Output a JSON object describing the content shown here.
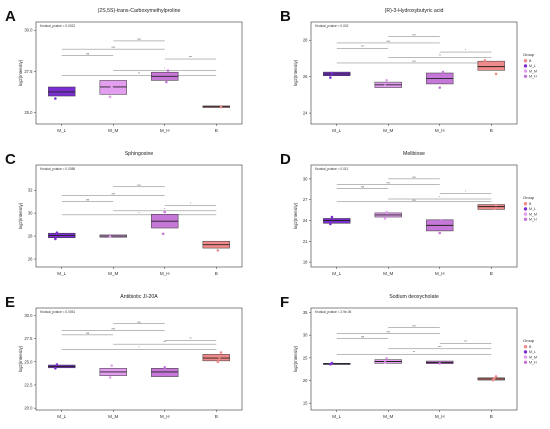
{
  "chart_data": [
    {
      "type": "box",
      "letter": "A",
      "title": "(2S,5S)-trans-Carboxymethylproline",
      "ylabel": "log2(Intensity)",
      "annotation": "Kruskal_pvalue = 0.0022",
      "categories": [
        "M_L",
        "M_M",
        "M_H",
        "B"
      ],
      "ylim": [
        24.3,
        30.5
      ],
      "yticks": [
        25.0,
        27.5,
        30.0
      ],
      "ytick_labels": [
        "25.0",
        "27.5",
        "30.0"
      ],
      "legend": null,
      "boxes": [
        {
          "q1": 26.0,
          "median": 26.25,
          "q3": 26.55,
          "color": "#7b2fd0"
        },
        {
          "q1": 26.1,
          "median": 26.55,
          "q3": 26.95,
          "color": "#e39ef0"
        },
        {
          "q1": 26.95,
          "median": 27.2,
          "q3": 27.45,
          "color": "#c678d8"
        },
        {
          "q1": 25.3,
          "median": 25.35,
          "q3": 25.4,
          "color": "#f08a8a"
        }
      ],
      "points": [
        [
          0,
          25.85
        ],
        [
          0,
          26.45
        ],
        [
          1,
          25.95
        ],
        [
          1,
          26.55
        ],
        [
          1,
          26.7
        ],
        [
          2,
          26.85
        ],
        [
          2,
          27.55
        ],
        [
          3,
          25.33
        ]
      ],
      "brackets": [
        {
          "from": 0,
          "to": 1,
          "y": 28.45,
          "label": "ns"
        },
        {
          "from": 0,
          "to": 2,
          "y": 28.85,
          "label": "ns"
        },
        {
          "from": 1,
          "to": 2,
          "y": 29.35,
          "label": "ns"
        },
        {
          "from": 2,
          "to": 3,
          "y": 28.25,
          "label": "***"
        },
        {
          "from": 1,
          "to": 3,
          "y": 27.55,
          "label": "*"
        },
        {
          "from": 0,
          "to": 3,
          "y": 27.25,
          "label": "**"
        }
      ]
    },
    {
      "type": "box",
      "letter": "B",
      "title": "(R)-3-Hydroxybutyric acid",
      "ylabel": "log2(Intensity)",
      "annotation": "Kruskal_pvalue = 0.002",
      "categories": [
        "M_L",
        "M_M",
        "M_H",
        "B"
      ],
      "ylim": [
        23.4,
        29.0
      ],
      "yticks": [
        24,
        26,
        28
      ],
      "ytick_labels": [
        "24",
        "26",
        "28"
      ],
      "legend": {
        "title": "Group",
        "items": [
          "B",
          "M_L",
          "M_M",
          "M_H"
        ],
        "colors": [
          "#f08a8a",
          "#7b2fd0",
          "#e39ef0",
          "#c678d8"
        ]
      },
      "boxes": [
        {
          "q1": 26.05,
          "median": 26.15,
          "q3": 26.25,
          "color": "#7b2fd0"
        },
        {
          "q1": 25.4,
          "median": 25.55,
          "q3": 25.7,
          "color": "#e39ef0"
        },
        {
          "q1": 25.6,
          "median": 25.9,
          "q3": 26.2,
          "color": "#c678d8"
        },
        {
          "q1": 26.35,
          "median": 26.55,
          "q3": 26.85,
          "color": "#f08a8a"
        }
      ],
      "points": [
        [
          0,
          25.95
        ],
        [
          0,
          26.2
        ],
        [
          1,
          25.5
        ],
        [
          1,
          25.8
        ],
        [
          2,
          25.4
        ],
        [
          2,
          26.0
        ],
        [
          2,
          26.25
        ],
        [
          3,
          26.15
        ],
        [
          3,
          26.45
        ],
        [
          3,
          26.9
        ]
      ],
      "brackets": [
        {
          "from": 0,
          "to": 1,
          "y": 27.55,
          "label": "***"
        },
        {
          "from": 0,
          "to": 2,
          "y": 27.85,
          "label": "ns"
        },
        {
          "from": 1,
          "to": 2,
          "y": 28.2,
          "label": "ns"
        },
        {
          "from": 2,
          "to": 3,
          "y": 27.35,
          "label": "*"
        },
        {
          "from": 1,
          "to": 3,
          "y": 27.05,
          "label": "**"
        },
        {
          "from": 0,
          "to": 3,
          "y": 26.75,
          "label": "ns"
        }
      ]
    },
    {
      "type": "box",
      "letter": "C",
      "title": "Sphingosine",
      "ylabel": "log2(Intensity)",
      "annotation": "Kruskal_pvalue = 0.0086",
      "categories": [
        "M_L",
        "M_M",
        "M_H",
        "B"
      ],
      "ylim": [
        25.3,
        34.2
      ],
      "yticks": [
        26,
        28,
        30,
        32
      ],
      "ytick_labels": [
        "26",
        "28",
        "30",
        "32"
      ],
      "legend": null,
      "boxes": [
        {
          "q1": 27.85,
          "median": 28.05,
          "q3": 28.25,
          "color": "#7b2fd0"
        },
        {
          "q1": 27.9,
          "median": 28.0,
          "q3": 28.1,
          "color": "#e39ef0"
        },
        {
          "q1": 28.7,
          "median": 29.3,
          "q3": 29.9,
          "color": "#c678d8"
        },
        {
          "q1": 26.95,
          "median": 27.25,
          "q3": 27.55,
          "color": "#f08a8a"
        }
      ],
      "points": [
        [
          0,
          27.75
        ],
        [
          0,
          28.3
        ],
        [
          1,
          27.95
        ],
        [
          2,
          28.2
        ],
        [
          2,
          30.1
        ],
        [
          3,
          26.75
        ],
        [
          3,
          27.4
        ]
      ],
      "brackets": [
        {
          "from": 0,
          "to": 1,
          "y": 31.0,
          "label": "ns"
        },
        {
          "from": 0,
          "to": 2,
          "y": 31.55,
          "label": "ns"
        },
        {
          "from": 1,
          "to": 2,
          "y": 32.3,
          "label": "ns"
        },
        {
          "from": 2,
          "to": 3,
          "y": 30.65,
          "label": "*"
        },
        {
          "from": 1,
          "to": 3,
          "y": 30.2,
          "label": "*"
        },
        {
          "from": 0,
          "to": 3,
          "y": 29.85,
          "label": "*"
        }
      ]
    },
    {
      "type": "box",
      "letter": "D",
      "title": "Melibiose",
      "ylabel": "log2(Intensity)",
      "annotation": "Kruskal_pvalue = 0.011",
      "categories": [
        "M_L",
        "M_M",
        "M_H",
        "B"
      ],
      "ylim": [
        17.3,
        32.0
      ],
      "yticks": [
        18,
        21,
        24,
        27,
        30
      ],
      "ytick_labels": [
        "18",
        "21",
        "24",
        "27",
        "30"
      ],
      "legend": {
        "title": "Group",
        "items": [
          "B",
          "M_L",
          "M_M",
          "M_H"
        ],
        "colors": [
          "#f08a8a",
          "#7b2fd0",
          "#e39ef0",
          "#c678d8"
        ]
      },
      "boxes": [
        {
          "q1": 23.6,
          "median": 24.0,
          "q3": 24.3,
          "color": "#7b2fd0"
        },
        {
          "q1": 24.5,
          "median": 24.8,
          "q3": 25.1,
          "color": "#e39ef0"
        },
        {
          "q1": 22.5,
          "median": 23.3,
          "q3": 24.1,
          "color": "#c678d8"
        },
        {
          "q1": 25.6,
          "median": 26.0,
          "q3": 26.3,
          "color": "#f08a8a"
        }
      ],
      "points": [
        [
          0,
          23.5
        ],
        [
          0,
          24.5
        ],
        [
          1,
          24.3
        ],
        [
          1,
          25.2
        ],
        [
          2,
          22.2
        ],
        [
          2,
          24.0
        ],
        [
          3,
          25.7
        ],
        [
          3,
          26.2
        ]
      ],
      "brackets": [
        {
          "from": 0,
          "to": 1,
          "y": 28.6,
          "label": "ns"
        },
        {
          "from": 0,
          "to": 2,
          "y": 29.2,
          "label": "ns"
        },
        {
          "from": 1,
          "to": 2,
          "y": 30.0,
          "label": "ns"
        },
        {
          "from": 2,
          "to": 3,
          "y": 27.9,
          "label": "*"
        },
        {
          "from": 1,
          "to": 3,
          "y": 27.1,
          "label": "*"
        },
        {
          "from": 0,
          "to": 3,
          "y": 26.7,
          "label": "ns"
        }
      ]
    },
    {
      "type": "box",
      "letter": "E",
      "title": "Antibiotic JI-20A",
      "ylabel": "log2(Intensity)",
      "annotation": "Kruskal_pvalue = 0.0051",
      "categories": [
        "M_L",
        "M_M",
        "M_H",
        "B"
      ],
      "ylim": [
        19.8,
        30.8
      ],
      "yticks": [
        20.0,
        22.5,
        25.0,
        27.5,
        30.0
      ],
      "ytick_labels": [
        "20.0",
        "22.5",
        "25.0",
        "27.5",
        "30.0"
      ],
      "legend": null,
      "boxes": [
        {
          "q1": 24.35,
          "median": 24.5,
          "q3": 24.65,
          "color": "#7b2fd0"
        },
        {
          "q1": 23.5,
          "median": 23.9,
          "q3": 24.3,
          "color": "#e39ef0"
        },
        {
          "q1": 23.4,
          "median": 23.9,
          "q3": 24.3,
          "color": "#c678d8"
        },
        {
          "q1": 25.1,
          "median": 25.4,
          "q3": 25.8,
          "color": "#f08a8a"
        }
      ],
      "points": [
        [
          0,
          24.3
        ],
        [
          0,
          24.7
        ],
        [
          1,
          23.3
        ],
        [
          1,
          24.6
        ],
        [
          2,
          24.4
        ],
        [
          3,
          25.0
        ],
        [
          3,
          25.5
        ],
        [
          3,
          26.0
        ]
      ],
      "brackets": [
        {
          "from": 0,
          "to": 1,
          "y": 27.9,
          "label": "ns"
        },
        {
          "from": 0,
          "to": 2,
          "y": 28.4,
          "label": "ns"
        },
        {
          "from": 1,
          "to": 2,
          "y": 29.1,
          "label": "ns"
        },
        {
          "from": 2,
          "to": 3,
          "y": 27.3,
          "label": "**"
        },
        {
          "from": 1,
          "to": 3,
          "y": 26.9,
          "label": "**"
        },
        {
          "from": 0,
          "to": 3,
          "y": 26.3,
          "label": "*"
        }
      ]
    },
    {
      "type": "box",
      "letter": "F",
      "title": "Sodium deoxycholate",
      "ylabel": "log2(Intensity)",
      "annotation": "Kruskal_pvalue = 2.9e-05",
      "categories": [
        "M_L",
        "M_M",
        "M_H",
        "B"
      ],
      "ylim": [
        13.5,
        36.0
      ],
      "yticks": [
        15,
        20,
        25,
        30,
        35
      ],
      "ytick_labels": [
        "15",
        "20",
        "25",
        "30",
        "35"
      ],
      "legend": {
        "title": "Group",
        "items": [
          "B",
          "M_L",
          "M_M",
          "M_H"
        ],
        "colors": [
          "#f08a8a",
          "#7b2fd0",
          "#e39ef0",
          "#c678d8"
        ]
      },
      "boxes": [
        {
          "q1": 23.6,
          "median": 23.7,
          "q3": 23.8,
          "color": "#7b2fd0"
        },
        {
          "q1": 23.8,
          "median": 24.2,
          "q3": 24.6,
          "color": "#e39ef0"
        },
        {
          "q1": 23.7,
          "median": 24.0,
          "q3": 24.3,
          "color": "#c678d8"
        },
        {
          "q1": 20.1,
          "median": 20.35,
          "q3": 20.6,
          "color": "#f08a8a"
        }
      ],
      "points": [
        [
          0,
          23.6
        ],
        [
          0,
          23.85
        ],
        [
          1,
          24.0
        ],
        [
          1,
          24.9
        ],
        [
          2,
          23.8
        ],
        [
          3,
          20.1
        ],
        [
          3,
          20.5
        ],
        [
          3,
          20.9
        ]
      ],
      "brackets": [
        {
          "from": 0,
          "to": 1,
          "y": 29.3,
          "label": "ns"
        },
        {
          "from": 0,
          "to": 2,
          "y": 30.4,
          "label": "ns"
        },
        {
          "from": 1,
          "to": 2,
          "y": 31.7,
          "label": "ns"
        },
        {
          "from": 2,
          "to": 3,
          "y": 28.2,
          "label": "***"
        },
        {
          "from": 1,
          "to": 3,
          "y": 27.0,
          "label": "***"
        },
        {
          "from": 0,
          "to": 3,
          "y": 25.8,
          "label": "**"
        }
      ]
    }
  ]
}
